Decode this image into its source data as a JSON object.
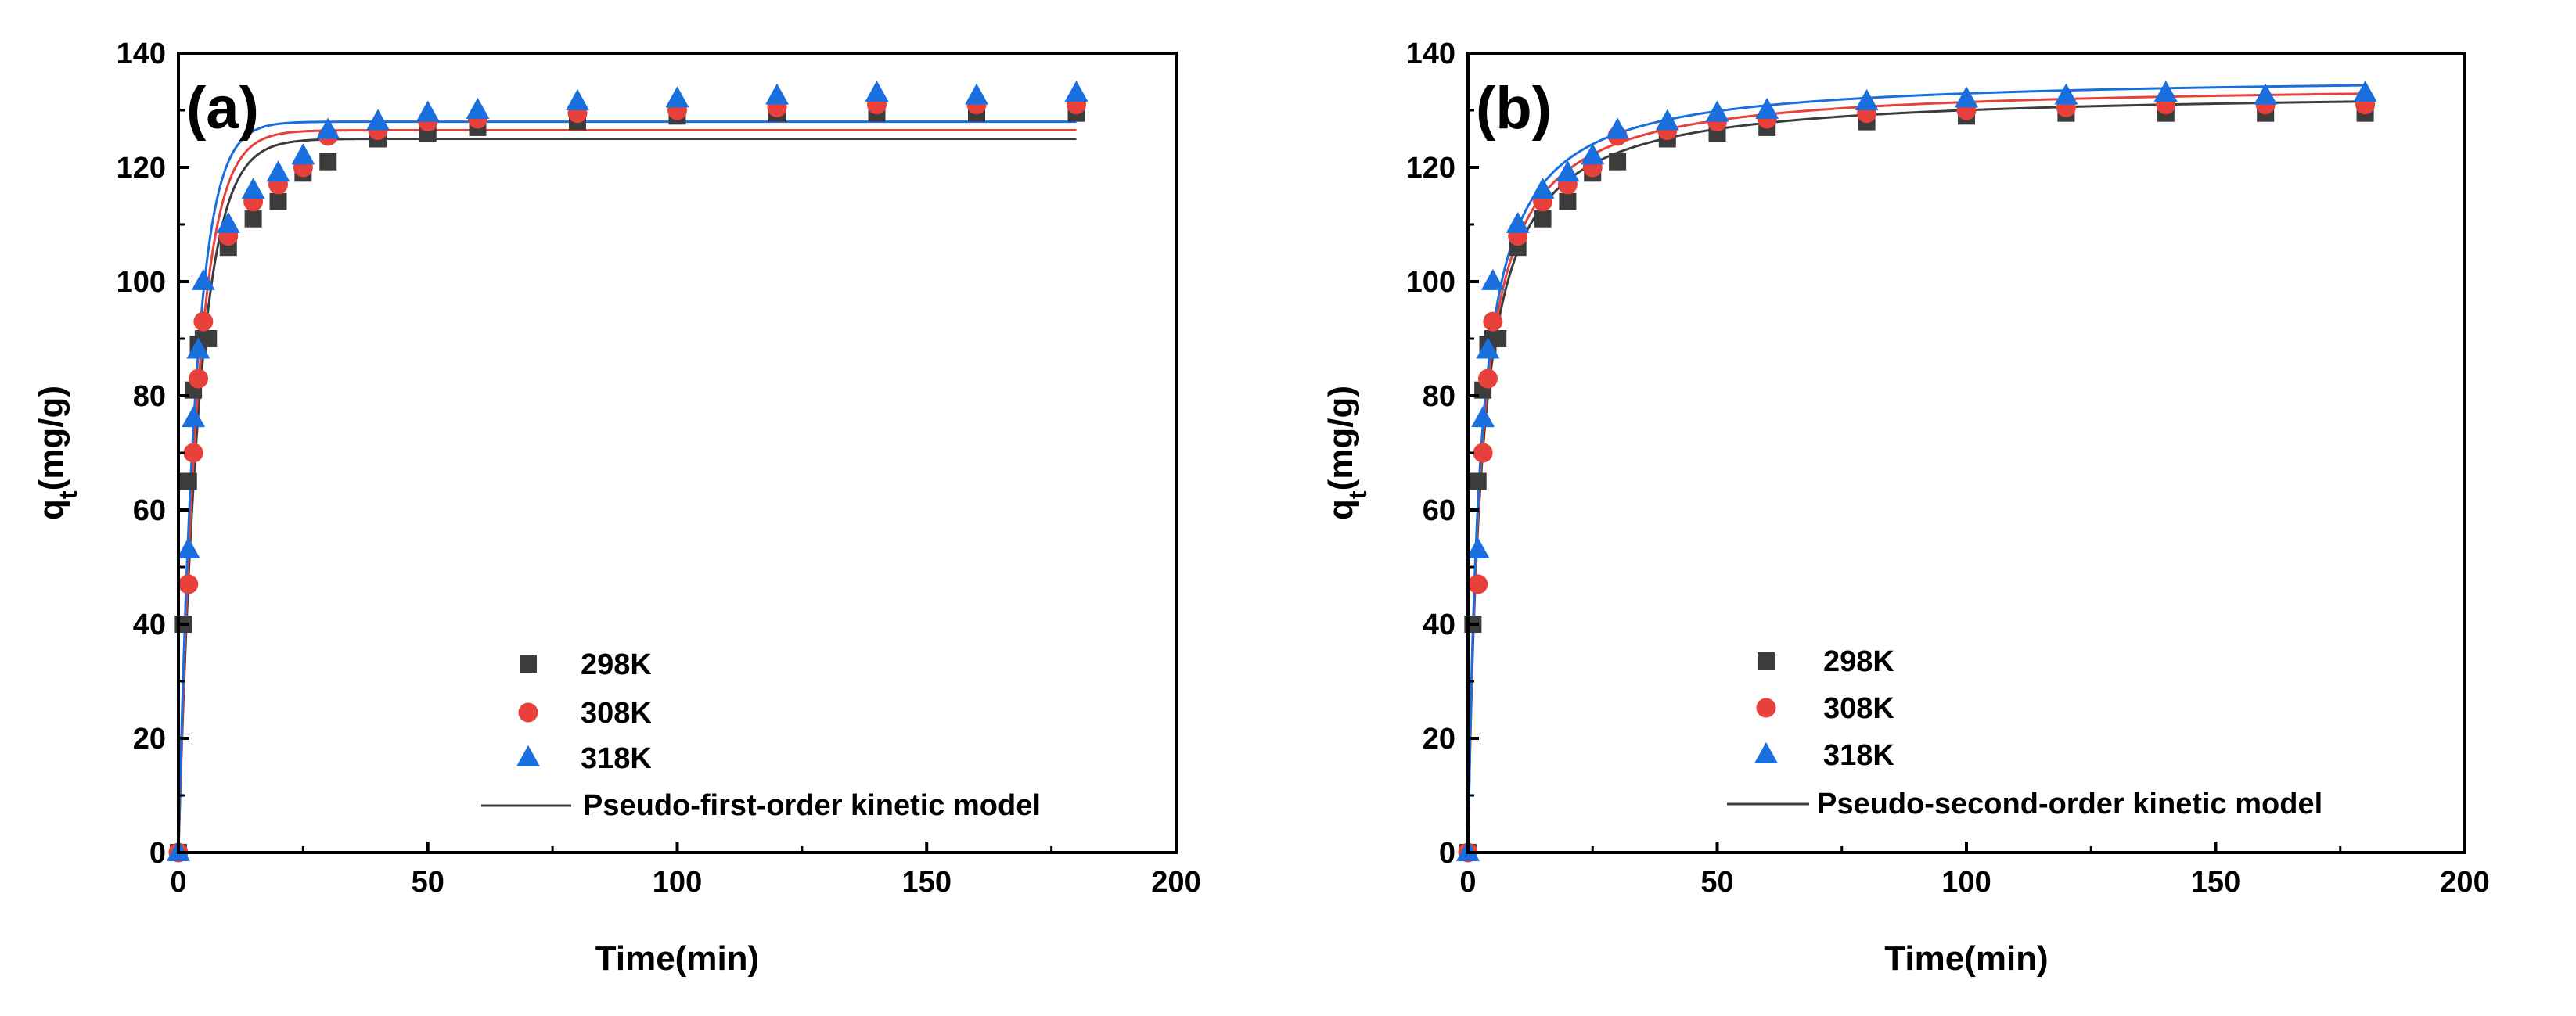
{
  "chart_data": [
    {
      "type": "scatter",
      "panel_label": "(a)",
      "xlabel": "Time(min)",
      "ylabel_main": "q",
      "ylabel_sub": "t",
      "ylabel_rest": "(mg/g)",
      "xlim": [
        0,
        200
      ],
      "ylim": [
        0,
        140
      ],
      "xticks": [
        "0",
        "50",
        "100",
        "150",
        "200"
      ],
      "yticks": [
        "0",
        "20",
        "40",
        "60",
        "80",
        "100",
        "120",
        "140"
      ],
      "grid": false,
      "legend_position": "bottom-right",
      "model_label": "Pseudo-first-order kinetic model",
      "model_type": "pfo",
      "series": [
        {
          "name": "298K",
          "marker": "square",
          "color": "#3c3c3c",
          "line_color": "#3c3c3c",
          "qe": 125,
          "k": 0.24,
          "x": [
            0,
            1,
            2,
            3,
            4,
            5,
            6,
            10,
            15,
            20,
            25,
            30,
            40,
            50,
            60,
            80,
            100,
            120,
            140,
            160,
            180
          ],
          "y": [
            0,
            40,
            65,
            81,
            89,
            90,
            90,
            106,
            111,
            114,
            119,
            121,
            125,
            126,
            127,
            128,
            129,
            129.5,
            129.5,
            129.5,
            129.5
          ]
        },
        {
          "name": "308K",
          "marker": "circle",
          "color": "#e8403a",
          "line_color": "#e8403a",
          "qe": 126.5,
          "k": 0.26,
          "x": [
            0,
            2,
            3,
            4,
            5,
            10,
            15,
            20,
            25,
            30,
            40,
            50,
            60,
            80,
            100,
            120,
            140,
            160,
            180
          ],
          "y": [
            0,
            47,
            70,
            83,
            93,
            108,
            114,
            117,
            120,
            125.5,
            126.5,
            128,
            128.5,
            129.5,
            130,
            130.5,
            131,
            131,
            131
          ]
        },
        {
          "name": "318K",
          "marker": "triangle",
          "color": "#1a6fdf",
          "line_color": "#1a6fdf",
          "qe": 128,
          "k": 0.29,
          "x": [
            0,
            2,
            3,
            4,
            5,
            10,
            15,
            20,
            25,
            30,
            40,
            50,
            60,
            80,
            100,
            120,
            140,
            160,
            180
          ],
          "y": [
            0,
            53,
            76,
            88,
            100,
            110,
            116,
            119,
            122,
            126.5,
            128,
            129.5,
            130,
            131.5,
            132,
            132.5,
            133,
            132.5,
            133
          ]
        }
      ]
    },
    {
      "type": "scatter",
      "panel_label": "(b)",
      "xlabel": "Time(min)",
      "ylabel_main": "q",
      "ylabel_sub": "t",
      "ylabel_rest": "(mg/g)",
      "xlim": [
        0,
        200
      ],
      "ylim": [
        0,
        140
      ],
      "xticks": [
        "0",
        "50",
        "100",
        "150",
        "200"
      ],
      "yticks": [
        "0",
        "20",
        "40",
        "60",
        "80",
        "100",
        "120",
        "140"
      ],
      "grid": false,
      "legend_position": "bottom-right",
      "model_label": "Pseudo-second-order kinetic model",
      "model_type": "pso",
      "series": [
        {
          "name": "298K",
          "marker": "square",
          "color": "#3c3c3c",
          "line_color": "#3c3c3c",
          "qe": 133.5,
          "k": 0.0028,
          "x": [
            0,
            1,
            2,
            3,
            4,
            5,
            6,
            10,
            15,
            20,
            25,
            30,
            40,
            50,
            60,
            80,
            100,
            120,
            140,
            160,
            180
          ],
          "y": [
            0,
            40,
            65,
            81,
            89,
            90,
            90,
            106,
            111,
            114,
            119,
            121,
            125,
            126,
            127,
            128,
            129,
            129.5,
            129.5,
            129.5,
            129.5
          ]
        },
        {
          "name": "308K",
          "marker": "circle",
          "color": "#e8403a",
          "line_color": "#e8403a",
          "qe": 134.8,
          "k": 0.0029,
          "x": [
            0,
            2,
            3,
            4,
            5,
            10,
            15,
            20,
            25,
            30,
            40,
            50,
            60,
            80,
            100,
            120,
            140,
            160,
            180
          ],
          "y": [
            0,
            47,
            70,
            83,
            93,
            108,
            114,
            117,
            120,
            125.5,
            126.5,
            128,
            128.5,
            129.5,
            130,
            130.5,
            131,
            131,
            131
          ]
        },
        {
          "name": "318K",
          "marker": "triangle",
          "color": "#1a6fdf",
          "line_color": "#1a6fdf",
          "qe": 136.2,
          "k": 0.003,
          "x": [
            0,
            2,
            3,
            4,
            5,
            10,
            15,
            20,
            25,
            30,
            40,
            50,
            60,
            80,
            100,
            120,
            140,
            160,
            180
          ],
          "y": [
            0,
            53,
            76,
            88,
            100,
            110,
            116,
            119,
            122,
            126.5,
            128,
            129.5,
            130,
            131.5,
            132,
            132.5,
            133,
            132.5,
            133
          ]
        }
      ]
    }
  ]
}
